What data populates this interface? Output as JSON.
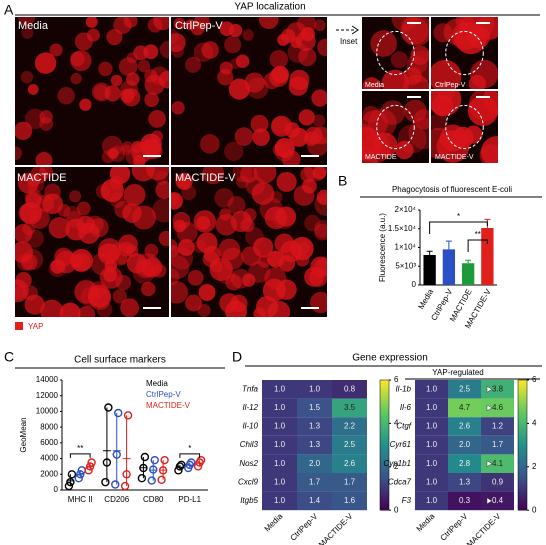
{
  "panel_labels": [
    "A",
    "B",
    "C",
    "D"
  ],
  "panel_a": {
    "title": "YAP localization",
    "image_labels": [
      "Media",
      "CtrlPep-V",
      "MACTIDE",
      "MACTIDE-V"
    ],
    "inset_label": "Inset",
    "inset_labels": [
      "Media",
      "CtrlPep-V",
      "MACTIDE",
      "MACTIDE-V"
    ],
    "legend": "YAP"
  },
  "panel_d": {
    "title": "Gene expression",
    "subtitle": "YAP-regulated"
  },
  "chart_data": [
    {
      "type": "bar",
      "title": "Phagocytosis of fluorescent E-coli",
      "ylabel": "Fluorescence (a.u.)",
      "categories": [
        "Media",
        "CtrlPep-V",
        "MACTIDE",
        "MACTIDE-V"
      ],
      "values": [
        8000,
        9500,
        5800,
        15200
      ],
      "errors": [
        1000,
        2200,
        800,
        2300
      ],
      "colors": [
        "#000000",
        "#2b4fc4",
        "#1f9a3a",
        "#e0201b"
      ],
      "ylim": [
        0,
        20000
      ],
      "yticks": [
        0,
        {
          "value": 5000,
          "label": "5×10³"
        },
        {
          "value": 10000,
          "label": "1×10⁴"
        },
        {
          "value": 15000,
          "label": "1.5×10⁴"
        },
        {
          "value": 20000,
          "label": "2×10⁴"
        }
      ],
      "annotations": [
        "*",
        "**"
      ]
    },
    {
      "type": "dot",
      "title": "Cell surface markers",
      "ylabel": "GeoMean",
      "categories": [
        "MHC II",
        "CD206",
        "CD80",
        "PD-L1"
      ],
      "series": [
        {
          "name": "Media",
          "color": "#000000",
          "values": [
            [
              500,
              1000,
              2000
            ],
            [
              1000,
              3500,
              10500
            ],
            [
              1500,
              2800,
              4200
            ],
            [
              2500,
              3000,
              3200
            ]
          ]
        },
        {
          "name": "CtrlPep-V",
          "color": "#2b4fc4",
          "values": [
            [
              1500,
              2000,
              2500
            ],
            [
              700,
              4500,
              9800
            ],
            [
              1200,
              2600,
              3800
            ],
            [
              2800,
              3200,
              3500
            ]
          ]
        },
        {
          "name": "MACTIDE-V",
          "color": "#e0201b",
          "values": [
            [
              2500,
              3000,
              3500
            ],
            [
              500,
              2000,
              9500
            ],
            [
              1300,
              2500,
              3800
            ],
            [
              3000,
              3500,
              3800
            ]
          ]
        }
      ],
      "ylim": [
        0,
        14000
      ],
      "yticks": [
        0,
        2000,
        4000,
        6000,
        8000,
        10000,
        12000,
        14000
      ],
      "annotations": [
        "**",
        "*"
      ]
    },
    {
      "type": "heatmap",
      "rows": [
        "Tnfa",
        "Il-12",
        "Il-10",
        "Chil3",
        "Nos2",
        "Cxcl9",
        "Itgb5"
      ],
      "columns": [
        "Media",
        "CtrlPep-V",
        "MACTIDE-V"
      ],
      "values": [
        [
          1.0,
          1.0,
          0.8
        ],
        [
          1.0,
          1.5,
          3.5
        ],
        [
          1.0,
          1.3,
          2.2
        ],
        [
          1.0,
          1.3,
          2.5
        ],
        [
          1.0,
          2.0,
          2.6
        ],
        [
          1.0,
          1.7,
          1.7
        ],
        [
          1.0,
          1.4,
          1.6
        ]
      ],
      "value_labels": [
        [
          "1.0",
          "1.0",
          "0.8"
        ],
        [
          "1.0",
          "1.5",
          "3.5"
        ],
        [
          "1.0",
          "1.3",
          "2.2"
        ],
        [
          "1.0",
          "1.3",
          "2.5"
        ],
        [
          "1.0",
          "2.0",
          "2.6"
        ],
        [
          "1.0",
          "1.7",
          "1.7"
        ],
        [
          "1.0",
          "1.4",
          "1.6"
        ]
      ],
      "clim": [
        0,
        6
      ],
      "cticks": [
        0,
        2,
        4,
        6
      ]
    },
    {
      "type": "heatmap",
      "rows": [
        "Il-1b",
        "Il-6",
        "Ctgf",
        "Cyr61",
        "Cyp1b1",
        "Cdca7",
        "F3"
      ],
      "columns": [
        "Media",
        "CtrlPep-V",
        "MACTIDE-V"
      ],
      "values": [
        [
          1.0,
          2.5,
          3.8
        ],
        [
          1.0,
          4.7,
          4.6
        ],
        [
          1.0,
          2.6,
          1.2
        ],
        [
          1.0,
          2.0,
          1.7
        ],
        [
          1.0,
          2.8,
          4.1
        ],
        [
          1.0,
          1.3,
          0.9
        ],
        [
          1.0,
          0.3,
          0.4
        ]
      ],
      "value_labels": [
        [
          "1.0",
          "2.5",
          "3.8"
        ],
        [
          "1.0",
          "4.7",
          "4.6"
        ],
        [
          "1.0",
          "2.6",
          "1.2"
        ],
        [
          "1.0",
          "2.0",
          "1.7"
        ],
        [
          "1.0",
          "2.8",
          "4.1"
        ],
        [
          "1.0",
          "1.3",
          "0.9"
        ],
        [
          "1.0",
          "0.3",
          "0.4"
        ]
      ],
      "clim": [
        0,
        6
      ],
      "cticks": [
        0,
        2,
        4,
        6
      ]
    }
  ]
}
